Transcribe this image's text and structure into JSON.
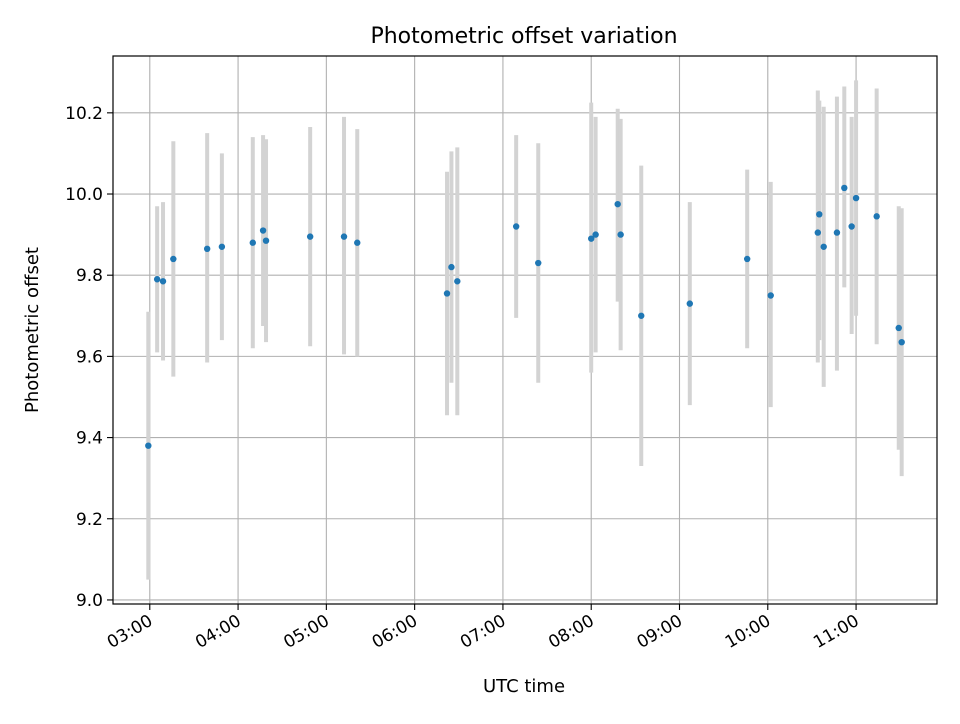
{
  "chart_data": {
    "type": "scatter",
    "title": "Photometric offset variation",
    "xlabel": "UTC time",
    "ylabel": "Photometric offset",
    "xlim": [
      "02:35",
      "11:55"
    ],
    "ylim": [
      8.99,
      10.34
    ],
    "x_ticks": [
      "03:00",
      "04:00",
      "05:00",
      "06:00",
      "07:00",
      "08:00",
      "09:00",
      "10:00",
      "11:00"
    ],
    "y_ticks": [
      9.0,
      9.2,
      9.4,
      9.6,
      9.8,
      10.0,
      10.2
    ],
    "y_tick_labels": [
      "9.0",
      "9.2",
      "9.4",
      "9.6",
      "9.8",
      "10.0",
      "10.2"
    ],
    "grid": true,
    "colors": {
      "point": "#1f77b4",
      "errorbar": "#d3d3d3",
      "grid": "#b0b0b0"
    },
    "series": [
      {
        "points": [
          {
            "x": "02:59",
            "y": 9.38,
            "lo": 9.05,
            "hi": 9.71
          },
          {
            "x": "03:05",
            "y": 9.79,
            "lo": 9.61,
            "hi": 9.97
          },
          {
            "x": "03:09",
            "y": 9.785,
            "lo": 9.59,
            "hi": 9.98
          },
          {
            "x": "03:16",
            "y": 9.84,
            "lo": 9.55,
            "hi": 10.13
          },
          {
            "x": "03:39",
            "y": 9.865,
            "lo": 9.585,
            "hi": 10.15
          },
          {
            "x": "03:49",
            "y": 9.87,
            "lo": 9.64,
            "hi": 10.1
          },
          {
            "x": "04:10",
            "y": 9.88,
            "lo": 9.62,
            "hi": 10.14
          },
          {
            "x": "04:17",
            "y": 9.91,
            "lo": 9.675,
            "hi": 10.145
          },
          {
            "x": "04:19",
            "y": 9.885,
            "lo": 9.635,
            "hi": 10.135
          },
          {
            "x": "04:49",
            "y": 9.895,
            "lo": 9.625,
            "hi": 10.165
          },
          {
            "x": "05:12",
            "y": 9.895,
            "lo": 9.605,
            "hi": 10.19
          },
          {
            "x": "05:21",
            "y": 9.88,
            "lo": 9.6,
            "hi": 10.16
          },
          {
            "x": "06:22",
            "y": 9.755,
            "lo": 9.455,
            "hi": 10.055
          },
          {
            "x": "06:25",
            "y": 9.82,
            "lo": 9.535,
            "hi": 10.105
          },
          {
            "x": "06:29",
            "y": 9.785,
            "lo": 9.455,
            "hi": 10.115
          },
          {
            "x": "07:09",
            "y": 9.92,
            "lo": 9.695,
            "hi": 10.145
          },
          {
            "x": "07:24",
            "y": 9.83,
            "lo": 9.535,
            "hi": 10.125
          },
          {
            "x": "08:00",
            "y": 9.89,
            "lo": 9.56,
            "hi": 10.225
          },
          {
            "x": "08:03",
            "y": 9.9,
            "lo": 9.61,
            "hi": 10.19
          },
          {
            "x": "08:18",
            "y": 9.975,
            "lo": 9.735,
            "hi": 10.21
          },
          {
            "x": "08:20",
            "y": 9.9,
            "lo": 9.615,
            "hi": 10.185
          },
          {
            "x": "08:34",
            "y": 9.7,
            "lo": 9.33,
            "hi": 10.07
          },
          {
            "x": "09:07",
            "y": 9.73,
            "lo": 9.48,
            "hi": 9.98
          },
          {
            "x": "09:46",
            "y": 9.84,
            "lo": 9.62,
            "hi": 10.06
          },
          {
            "x": "10:02",
            "y": 9.75,
            "lo": 9.475,
            "hi": 10.03
          },
          {
            "x": "10:34",
            "y": 9.905,
            "lo": 9.585,
            "hi": 10.255
          },
          {
            "x": "10:35",
            "y": 9.95,
            "lo": 9.64,
            "hi": 10.23
          },
          {
            "x": "10:38",
            "y": 9.87,
            "lo": 9.525,
            "hi": 10.215
          },
          {
            "x": "10:47",
            "y": 9.905,
            "lo": 9.565,
            "hi": 10.24
          },
          {
            "x": "10:52",
            "y": 10.015,
            "lo": 9.77,
            "hi": 10.265
          },
          {
            "x": "10:57",
            "y": 9.92,
            "lo": 9.655,
            "hi": 10.19
          },
          {
            "x": "11:00",
            "y": 9.99,
            "lo": 9.7,
            "hi": 10.28
          },
          {
            "x": "11:14",
            "y": 9.945,
            "lo": 9.63,
            "hi": 10.26
          },
          {
            "x": "11:29",
            "y": 9.67,
            "lo": 9.37,
            "hi": 9.97
          },
          {
            "x": "11:31",
            "y": 9.635,
            "lo": 9.305,
            "hi": 9.965
          }
        ]
      }
    ]
  }
}
